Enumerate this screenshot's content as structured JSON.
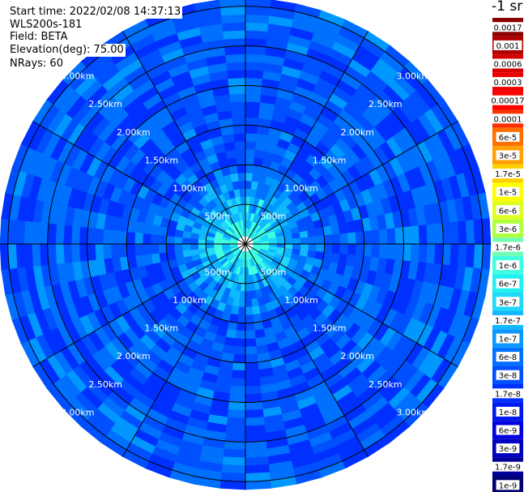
{
  "info": {
    "start_time": "Start time: 2022/02/08 14:37:13",
    "instrument": "WLS200s-181",
    "field": "Field: BETA",
    "elevation": "Elevation(deg): 75.00",
    "nrays": "NRays: 60"
  },
  "units_label": "-1 sr",
  "chart_data": {
    "type": "heatmap",
    "projection": "polar-ppi",
    "field": "BETA",
    "elevation_deg": 75.0,
    "n_rays": 60,
    "range_max_km": 3.1,
    "range_rings_km": [
      0.5,
      1.0,
      1.5,
      2.0,
      2.5,
      3.0
    ],
    "range_ring_labels": [
      "500m",
      "1.00km",
      "1.50km",
      "2.00km",
      "2.50km",
      "3.00km"
    ],
    "azimuth_spokes_deg": [
      0,
      30,
      60,
      90,
      120,
      150,
      180,
      210,
      240,
      270,
      300,
      330
    ],
    "gate_spacing_km": 0.1,
    "colorbar": {
      "labels": [
        "0.0017",
        "0.001",
        "0.0006",
        "0.0003",
        "0.00017",
        "0.0001",
        "6e-5",
        "3e-5",
        "1.7e-5",
        "1e-5",
        "6e-6",
        "3e-6",
        "1.7e-6",
        "1e-6",
        "6e-7",
        "3e-7",
        "1.7e-7",
        "1e-7",
        "6e-8",
        "3e-8",
        "1.7e-8",
        "1e-8",
        "6e-9",
        "3e-9",
        "1.7e-9",
        "1e-9"
      ],
      "colors": [
        "#8b0000",
        "#b00000",
        "#d40000",
        "#ee0000",
        "#ff0000",
        "#ff3000",
        "#ff7000",
        "#ffa000",
        "#ffd000",
        "#ffff00",
        "#e0ff20",
        "#b0ff40",
        "#70ffb0",
        "#40ffe0",
        "#20f0f0",
        "#20d8f8",
        "#10b8ff",
        "#0898ff",
        "#0070ff",
        "#0050ff",
        "#0030ff",
        "#0018f0",
        "#0000e0",
        "#0000c0",
        "#000098",
        "#000070"
      ]
    },
    "typical_values_by_range": [
      {
        "range_km": 0.2,
        "beta": "1.7e-7"
      },
      {
        "range_km": 0.5,
        "beta": "6e-8"
      },
      {
        "range_km": 1.0,
        "beta": "1.7e-8"
      },
      {
        "range_km": 2.0,
        "beta": "1e-8"
      },
      {
        "range_km": 3.0,
        "beta": "1e-8"
      }
    ]
  }
}
